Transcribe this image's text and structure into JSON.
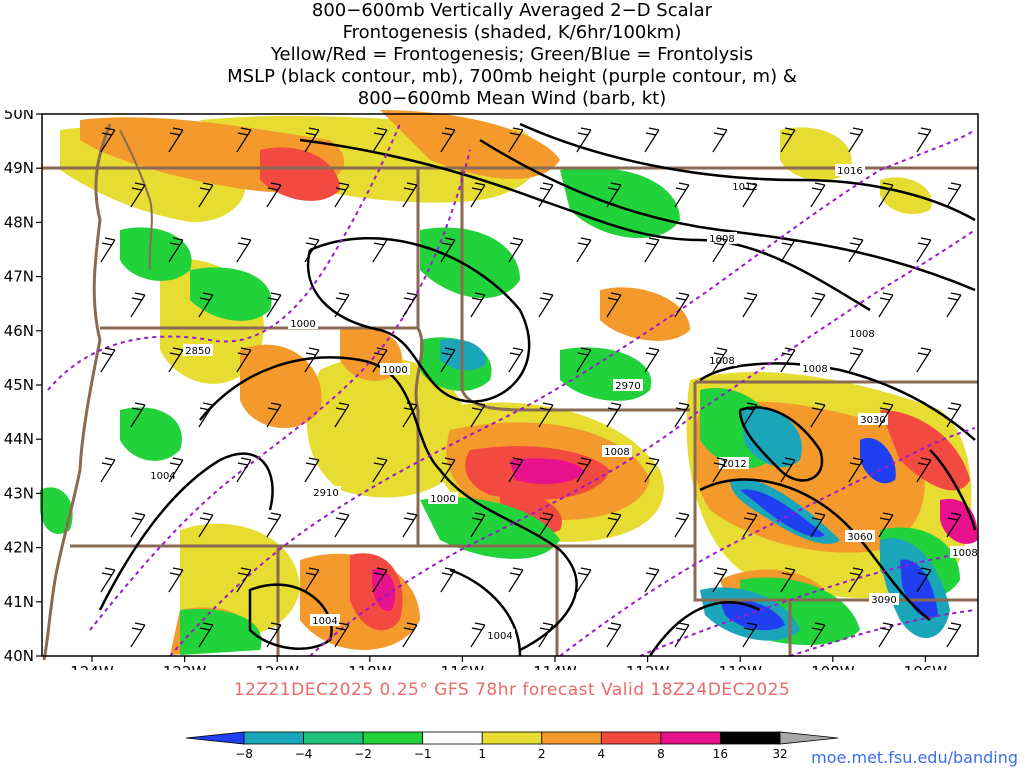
{
  "title": {
    "lines": [
      "800−600mb Vertically Averaged 2−D Scalar",
      "Frontogenesis (shaded, K/6hr/100km)",
      "Yellow/Red = Frontogenesis;  Green/Blue = Frontolysis",
      "MSLP (black contour, mb), 700mb height (purple contour, m) &",
      "800−600mb Mean Wind (barb, kt)"
    ]
  },
  "axes": {
    "lat_labels": [
      "50N",
      "49N",
      "48N",
      "47N",
      "46N",
      "45N",
      "44N",
      "43N",
      "42N",
      "41N",
      "40N"
    ],
    "lon_labels": [
      "124W",
      "122W",
      "120W",
      "118W",
      "116W",
      "114W",
      "112W",
      "110W",
      "108W",
      "106W"
    ]
  },
  "contour_labels": {
    "mslp": [
      "1016",
      "1012",
      "1008",
      "1008",
      "1008",
      "1008",
      "1000",
      "1000",
      "1008",
      "1012",
      "1004",
      "1000",
      "1004",
      "1004",
      "1008"
    ],
    "height": [
      "2850",
      "2970",
      "3030",
      "2910",
      "3060",
      "3090"
    ]
  },
  "footer": "12Z21DEC2025 0.25° GFS 78hr forecast Valid 18Z24DEC2025",
  "colorbar": {
    "labels": [
      "−8",
      "−4",
      "−2",
      "−1",
      "1",
      "2",
      "4",
      "8",
      "16",
      "32"
    ],
    "colors": [
      "#1f3ff0",
      "#1aa6b8",
      "#1fc07a",
      "#22d23a",
      "#ffffff",
      "#e6dc32",
      "#f49a2c",
      "#f24a40",
      "#e8128c",
      "#000000",
      "#a8a8a8"
    ]
  },
  "credit": "moe.met.fsu.edu/banding",
  "colors": {
    "state_border": "#8a6a52",
    "mslp_contour": "#000000",
    "height_contour": "#9a1acc",
    "footer_text": "#e86a6a",
    "credit_text": "#3a6ef0"
  }
}
